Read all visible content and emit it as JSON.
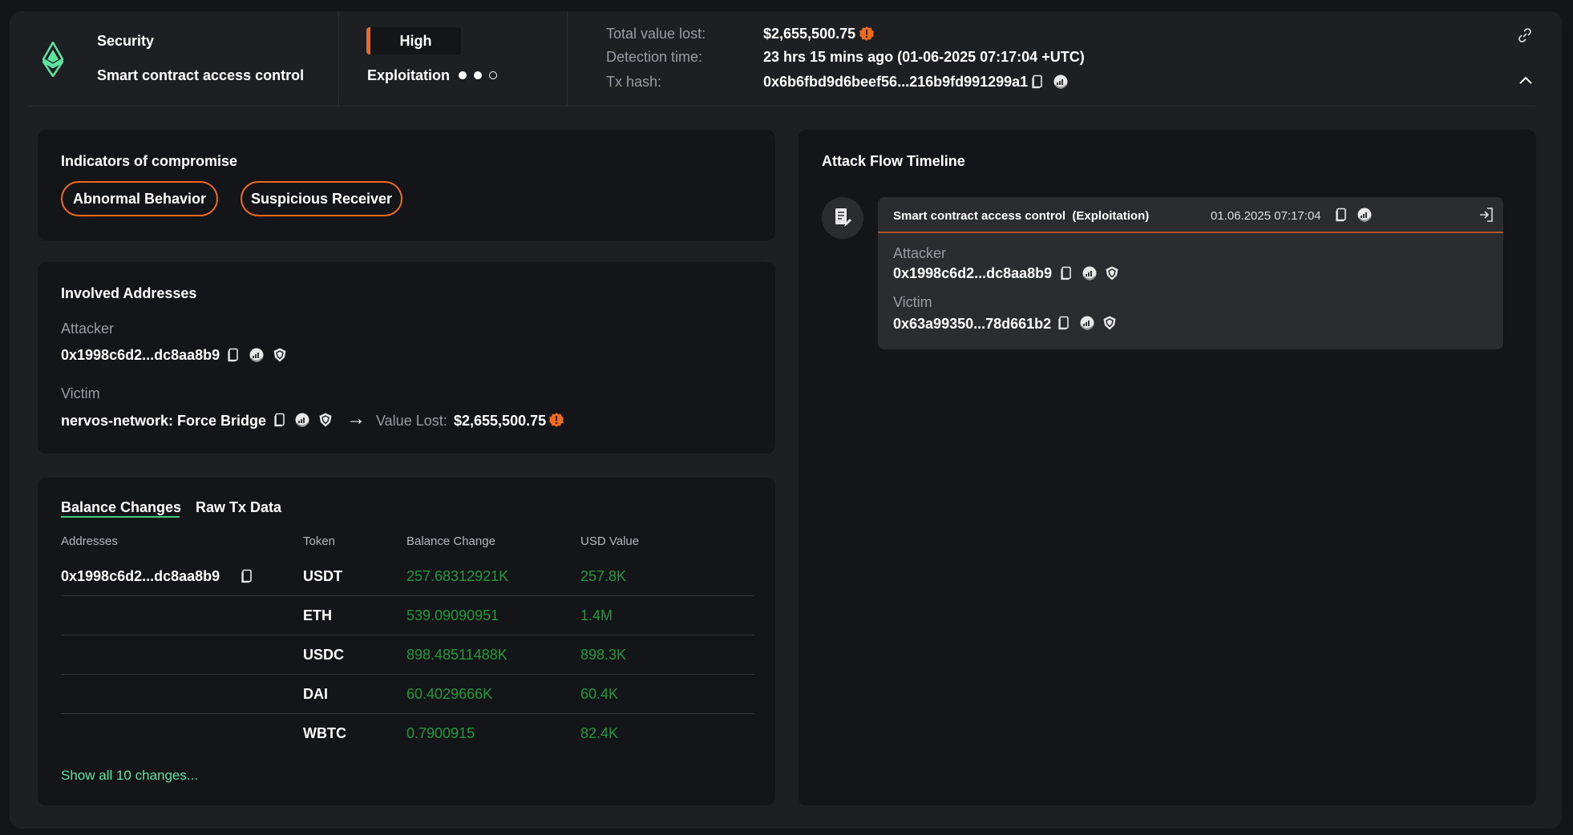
{
  "header": {
    "category": "Security",
    "title": "Smart contract access control",
    "severity": "High",
    "stage": "Exploitation",
    "stage_progress": "2 of 3",
    "total_value_lost_label": "Total value lost:",
    "total_value_lost": "$2,655,500.75",
    "detection_time_label": "Detection time:",
    "detection_time": "23 hrs 15 mins ago (01-06-2025 07:17:04 +UTC)",
    "tx_hash_label": "Tx hash:",
    "tx_hash": "0x6b6fbd9d6beef56...216b9fd991299a1"
  },
  "indicators": {
    "title": "Indicators of compromise",
    "items": [
      "Abnormal Behavior",
      "Suspicious Receiver"
    ]
  },
  "addresses": {
    "title": "Involved Addresses",
    "attacker_label": "Attacker",
    "attacker": "0x1998c6d2...dc8aa8b9",
    "victim_label": "Victim",
    "victim": "nervos-network: Force Bridge",
    "value_lost_label": "Value Lost:",
    "value_lost": "$2,655,500.75"
  },
  "balance": {
    "tabs": [
      "Balance Changes",
      "Raw Tx Data"
    ],
    "active_tab": "Balance Changes",
    "columns": [
      "Addresses",
      "Token",
      "Balance Change",
      "USD Value"
    ],
    "rows": [
      {
        "address": "0x1998c6d2...dc8aa8b9",
        "token": "USDT",
        "change": "257.68312921K",
        "usd": "257.8K"
      },
      {
        "address": "",
        "token": "ETH",
        "change": "539.09090951",
        "usd": "1.4M"
      },
      {
        "address": "",
        "token": "USDC",
        "change": "898.48511488K",
        "usd": "898.3K"
      },
      {
        "address": "",
        "token": "DAI",
        "change": "60.4029666K",
        "usd": "60.4K"
      },
      {
        "address": "",
        "token": "WBTC",
        "change": "0.7900915",
        "usd": "82.4K"
      }
    ],
    "show_all": "Show all 10 changes..."
  },
  "timeline": {
    "title": "Attack Flow Timeline",
    "event": {
      "title": "Smart contract access control  (Exploitation)",
      "time": "01.06.2025 07:17:04",
      "attacker_label": "Attacker",
      "attacker": "0x1998c6d2...dc8aa8b9",
      "victim_label": "Victim",
      "victim": "0x63a99350...78d661b2"
    }
  },
  "colors": {
    "accent_orange": "#f26b1d",
    "brand_green": "#5fe3a1",
    "positive": "#1f9a3a"
  }
}
